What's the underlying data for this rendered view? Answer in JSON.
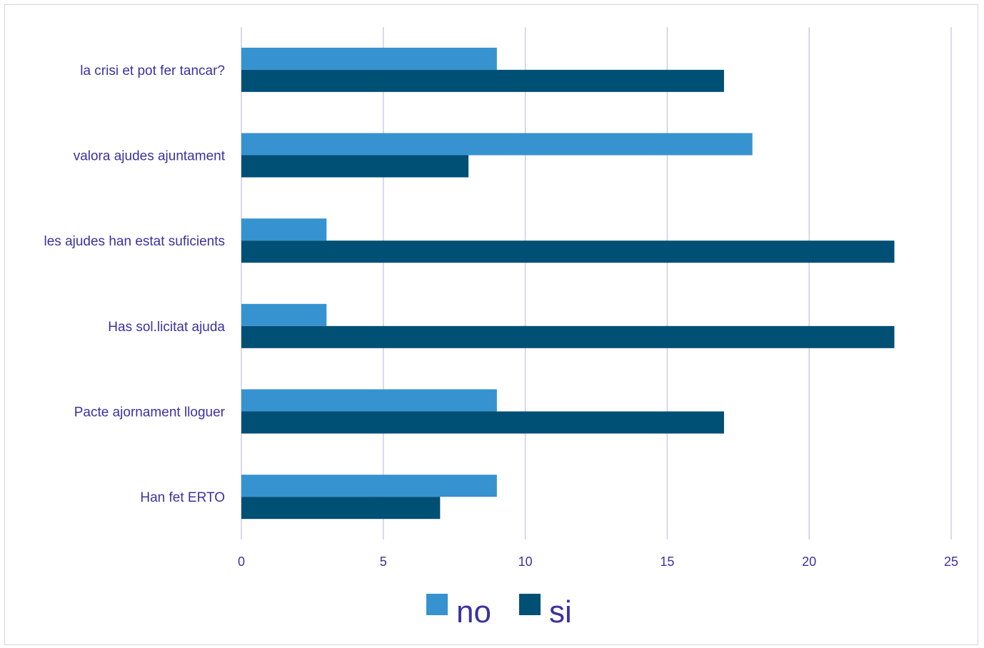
{
  "chart_data": {
    "type": "bar",
    "orientation": "horizontal",
    "categories": [
      "la crisi et pot fer tancar?",
      "valora ajudes ajuntament",
      "les ajudes han estat suficients",
      "Has sol.licitat ajuda",
      "Pacte ajornament lloguer",
      "Han fet ERTO"
    ],
    "series": [
      {
        "name": "no",
        "color": "#3792d0",
        "values": [
          9,
          18,
          3,
          3,
          9,
          9
        ]
      },
      {
        "name": "si",
        "color": "#004f75",
        "values": [
          17,
          8,
          23,
          23,
          17,
          7
        ]
      }
    ],
    "xlim": [
      0,
      25
    ],
    "xticks": [
      "0",
      "5",
      "10",
      "15",
      "20",
      "25"
    ],
    "title": "",
    "xlabel": "",
    "ylabel": "",
    "grid": true,
    "legend_position": "bottom"
  }
}
